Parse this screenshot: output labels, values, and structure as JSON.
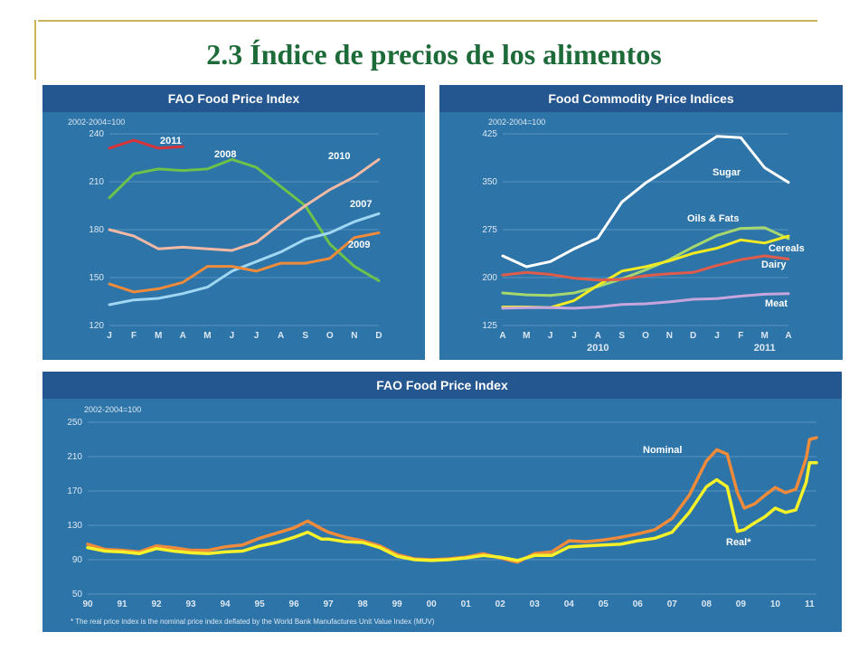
{
  "title": "2.3 Índice de precios de los alimentos",
  "colors": {
    "panel_bg": "#2d74a8",
    "header_bg": "#24568f",
    "grid": "#5c93c0",
    "text": "#dde8f3",
    "title": "#1e6b3a"
  },
  "chart_data": [
    {
      "type": "line",
      "title": "FAO Food Price Index",
      "base_label": "2002-2004=100",
      "categories": [
        "J",
        "F",
        "M",
        "A",
        "M",
        "J",
        "J",
        "A",
        "S",
        "O",
        "N",
        "D"
      ],
      "ylim": [
        120,
        240
      ],
      "yticks": [
        240,
        210,
        180,
        150,
        120
      ],
      "grid": true,
      "series": [
        {
          "name": "2011",
          "color": "#d8333a",
          "values": [
            231,
            236,
            231,
            232,
            null,
            null,
            null,
            null,
            null,
            null,
            null,
            null
          ]
        },
        {
          "name": "2008",
          "color": "#6cc24a",
          "values": [
            200,
            215,
            218,
            217,
            218,
            224,
            219,
            207,
            195,
            171,
            157,
            148
          ]
        },
        {
          "name": "2010",
          "color": "#f2b9a4",
          "values": [
            180,
            176,
            168,
            169,
            168,
            167,
            172,
            184,
            195,
            205,
            213,
            224
          ]
        },
        {
          "name": "2007",
          "color": "#9fd6f2",
          "values": [
            133,
            136,
            137,
            140,
            144,
            154,
            160,
            166,
            174,
            178,
            185,
            190
          ]
        },
        {
          "name": "2009",
          "color": "#ef8b3a",
          "values": [
            146,
            141,
            143,
            147,
            157,
            157,
            154,
            159,
            159,
            162,
            175,
            178
          ]
        }
      ]
    },
    {
      "type": "line",
      "title": "Food Commodity Price Indices",
      "base_label": "2002-2004=100",
      "categories": [
        "A",
        "M",
        "J",
        "J",
        "A",
        "S",
        "O",
        "N",
        "D",
        "J",
        "F",
        "M",
        "A"
      ],
      "group_labels": [
        "2010",
        "2011"
      ],
      "ylim": [
        125,
        425
      ],
      "yticks": [
        425,
        350,
        275,
        200,
        125
      ],
      "grid": true,
      "series": [
        {
          "name": "Sugar",
          "color": "#ffffff",
          "values": [
            234,
            217,
            225,
            245,
            262,
            318,
            348,
            372,
            397,
            421,
            419,
            372,
            349
          ]
        },
        {
          "name": "Oils & Fats",
          "color": "#a6d86e",
          "values": [
            176,
            173,
            172,
            176,
            186,
            198,
            212,
            228,
            248,
            266,
            277,
            278,
            261
          ]
        },
        {
          "name": "Cereals",
          "color": "#f2ea23",
          "values": [
            154,
            154,
            153,
            164,
            188,
            210,
            217,
            226,
            238,
            246,
            259,
            254,
            265
          ]
        },
        {
          "name": "Dairy",
          "color": "#e05c4a",
          "values": [
            204,
            208,
            205,
            199,
            196,
            197,
            203,
            206,
            208,
            219,
            228,
            234,
            229
          ]
        },
        {
          "name": "Meat",
          "color": "#c7a6dd",
          "values": [
            152,
            153,
            153,
            152,
            154,
            158,
            159,
            162,
            166,
            167,
            171,
            174,
            175
          ]
        }
      ]
    },
    {
      "type": "line",
      "title": "FAO Food Price Index",
      "base_label": "2002-2004=100",
      "categories": [
        "90",
        "91",
        "92",
        "93",
        "94",
        "95",
        "96",
        "97",
        "98",
        "99",
        "00",
        "01",
        "02",
        "03",
        "04",
        "05",
        "06",
        "07",
        "08",
        "09",
        "10",
        "11"
      ],
      "ylim": [
        50,
        250
      ],
      "yticks": [
        250,
        210,
        170,
        130,
        90,
        50
      ],
      "grid": true,
      "footnote": "* The real price index is the nominal price index deflated by the World Bank Manufactures Unit Value Index (MUV)",
      "series": [
        {
          "name": "Nominal",
          "color": "#ef8b3a",
          "x": [
            1990,
            1990.5,
            1991,
            1991.5,
            1992,
            1992.5,
            1993,
            1993.5,
            1994,
            1994.5,
            1995,
            1995.5,
            1996,
            1996.4,
            1996.8,
            1997,
            1997.5,
            1998,
            1998.5,
            1999,
            1999.5,
            2000,
            2000.5,
            2001,
            2001.5,
            2002,
            2002.5,
            2003,
            2003.5,
            2004,
            2004.5,
            2005,
            2005.5,
            2006,
            2006.5,
            2007,
            2007.5,
            2008,
            2008.3,
            2008.6,
            2008.9,
            2009.1,
            2009.4,
            2009.7,
            2010,
            2010.3,
            2010.6,
            2010.9,
            2011,
            2011.2
          ],
          "values": [
            108,
            102,
            101,
            99,
            106,
            104,
            101,
            101,
            105,
            107,
            115,
            121,
            127,
            135,
            126,
            122,
            116,
            112,
            106,
            96,
            91,
            90,
            91,
            93,
            97,
            92,
            87,
            97,
            99,
            112,
            111,
            113,
            116,
            120,
            125,
            138,
            165,
            205,
            218,
            213,
            168,
            150,
            155,
            165,
            174,
            168,
            172,
            208,
            230,
            232
          ]
        },
        {
          "name": "Real*",
          "color": "#f5f22a",
          "x": [
            1990,
            1990.5,
            1991,
            1991.5,
            1992,
            1992.5,
            1993,
            1993.5,
            1994,
            1994.5,
            1995,
            1995.5,
            1996,
            1996.4,
            1996.8,
            1997,
            1997.5,
            1998,
            1998.5,
            1999,
            1999.5,
            2000,
            2000.5,
            2001,
            2001.5,
            2002,
            2002.5,
            2003,
            2003.5,
            2004,
            2004.5,
            2005,
            2005.5,
            2006,
            2006.5,
            2007,
            2007.5,
            2008,
            2008.3,
            2008.6,
            2008.9,
            2009.1,
            2009.4,
            2009.7,
            2010,
            2010.3,
            2010.6,
            2010.9,
            2011,
            2011.2
          ],
          "values": [
            104,
            100,
            99,
            97,
            103,
            100,
            98,
            97,
            99,
            100,
            106,
            110,
            116,
            122,
            114,
            114,
            111,
            110,
            104,
            94,
            90,
            89,
            90,
            92,
            95,
            93,
            89,
            95,
            95,
            105,
            106,
            107,
            108,
            112,
            115,
            122,
            145,
            175,
            183,
            175,
            123,
            125,
            133,
            140,
            150,
            145,
            148,
            180,
            203,
            203
          ]
        }
      ]
    }
  ]
}
